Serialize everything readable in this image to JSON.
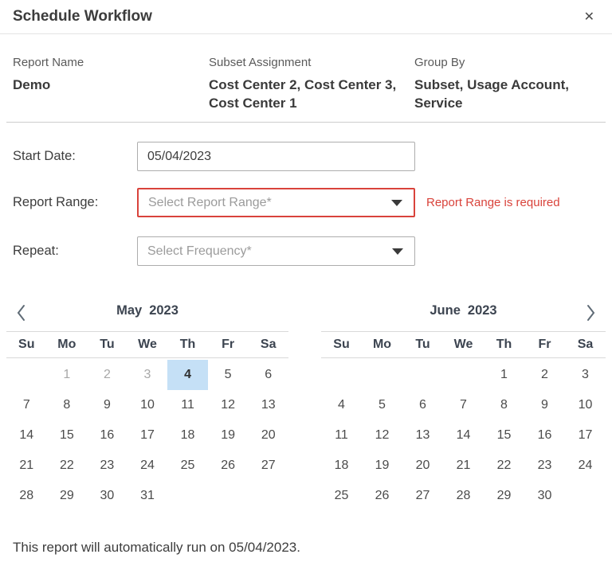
{
  "dialog": {
    "title": "Schedule Workflow",
    "close_glyph": "✕"
  },
  "summary": {
    "columns": [
      {
        "label": "Report Name",
        "value": "Demo"
      },
      {
        "label": "Subset Assignment",
        "value": "Cost Center 2, Cost Center 3, Cost Center 1"
      },
      {
        "label": "Group By",
        "value": "Subset, Usage Account, Service"
      }
    ]
  },
  "form": {
    "start_date": {
      "label": "Start Date:",
      "value": "05/04/2023"
    },
    "report_range": {
      "label": "Report Range:",
      "placeholder": "Select Report Range*",
      "error": "Report Range is required"
    },
    "repeat": {
      "label": "Repeat:",
      "placeholder": "Select Frequency*"
    }
  },
  "calendars": [
    {
      "month": "May",
      "year": "2023",
      "weekdays": [
        "Su",
        "Mo",
        "Tu",
        "We",
        "Th",
        "Fr",
        "Sa"
      ],
      "weeks": [
        [
          "",
          "1",
          "2",
          "3",
          "4",
          "5",
          "6"
        ],
        [
          "7",
          "8",
          "9",
          "10",
          "11",
          "12",
          "13"
        ],
        [
          "14",
          "15",
          "16",
          "17",
          "18",
          "19",
          "20"
        ],
        [
          "21",
          "22",
          "23",
          "24",
          "25",
          "26",
          "27"
        ],
        [
          "28",
          "29",
          "30",
          "31",
          "",
          "",
          ""
        ]
      ],
      "muted_days": [
        "1",
        "2",
        "3"
      ],
      "selected_day": "4"
    },
    {
      "month": "June",
      "year": "2023",
      "weekdays": [
        "Su",
        "Mo",
        "Tu",
        "We",
        "Th",
        "Fr",
        "Sa"
      ],
      "weeks": [
        [
          "",
          "",
          "",
          "",
          "1",
          "2",
          "3"
        ],
        [
          "4",
          "5",
          "6",
          "7",
          "8",
          "9",
          "10"
        ],
        [
          "11",
          "12",
          "13",
          "14",
          "15",
          "16",
          "17"
        ],
        [
          "18",
          "19",
          "20",
          "21",
          "22",
          "23",
          "24"
        ],
        [
          "25",
          "26",
          "27",
          "28",
          "29",
          "30",
          ""
        ]
      ],
      "muted_days": [],
      "selected_day": ""
    }
  ],
  "footer": {
    "text": "This report will automatically run on 05/04/2023."
  },
  "colors": {
    "error": "#d9433b",
    "selected_day_bg": "#c5e0f6"
  }
}
